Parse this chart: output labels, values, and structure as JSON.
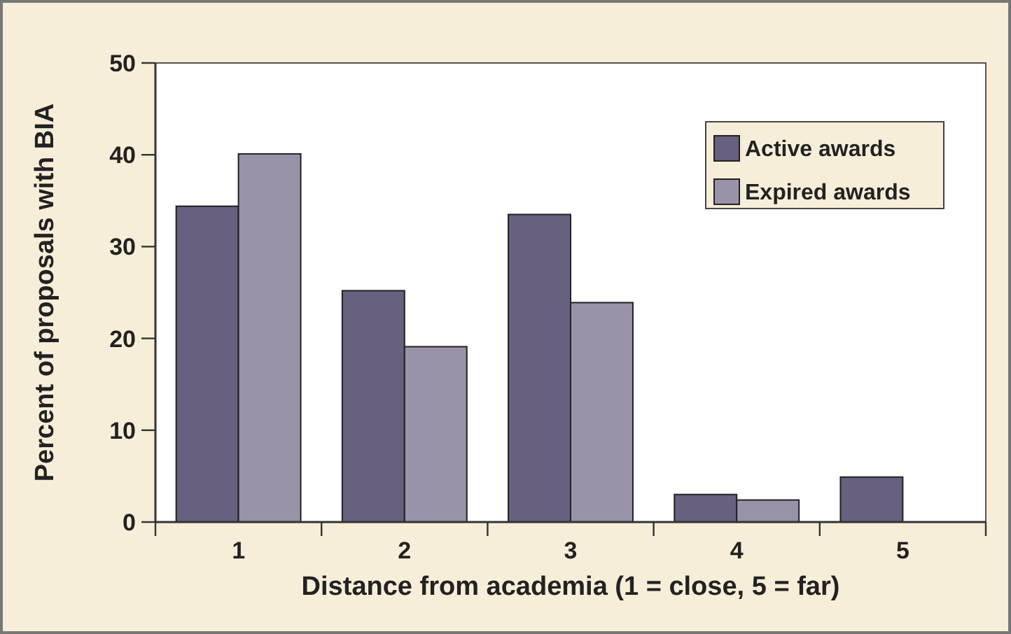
{
  "chart_data": {
    "type": "bar",
    "xlabel": "Distance from academia (1 = close, 5 = far)",
    "ylabel": "Percent of proposals with BIA",
    "categories": [
      "1",
      "2",
      "3",
      "4",
      "5"
    ],
    "series": [
      {
        "name": "Active awards",
        "color": "#67607f",
        "values": [
          34.4,
          25.2,
          33.5,
          3.0,
          4.9
        ]
      },
      {
        "name": "Expired awards",
        "color": "#9a92a8",
        "values": [
          40.1,
          19.1,
          23.9,
          2.4,
          0
        ]
      }
    ],
    "ylim": [
      0,
      50
    ],
    "yticks": [
      0,
      10,
      20,
      30,
      40,
      50
    ],
    "legend": "top right"
  }
}
